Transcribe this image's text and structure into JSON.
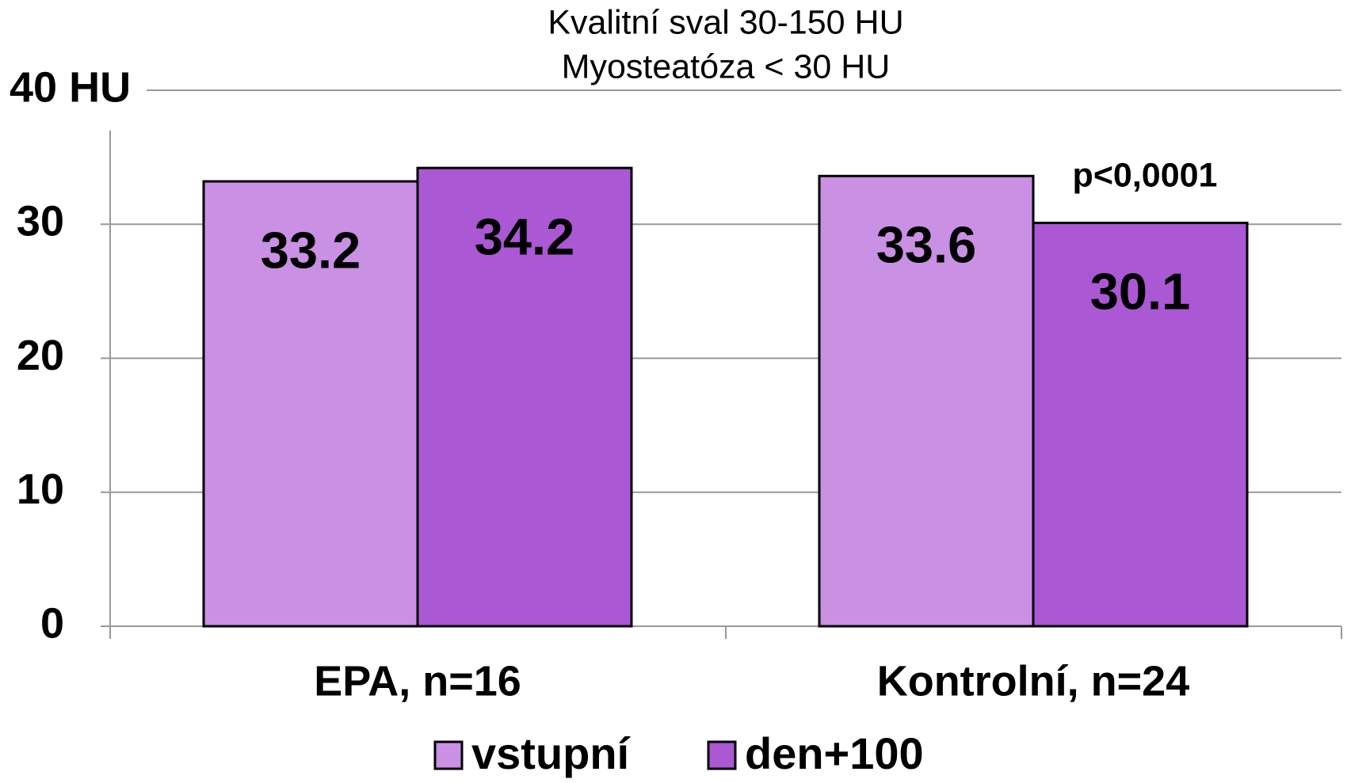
{
  "chart_data": {
    "type": "bar",
    "subtitle": [
      "Kvalitní sval 30-150 HU",
      "Myosteatóza < 30 HU"
    ],
    "categories": [
      "EPA, n=16",
      "Kontrolní, n=24"
    ],
    "series": [
      {
        "name": "vstupní",
        "color": "#c990e3",
        "values": [
          33.2,
          33.6
        ]
      },
      {
        "name": "den+100",
        "color": "#aa58d3",
        "values": [
          34.2,
          30.1
        ]
      }
    ],
    "annotation": "p<0,0001",
    "ylim": [
      0,
      40
    ],
    "yticks": [
      0,
      10,
      20,
      30,
      {
        "value": 40,
        "label": "40 HU"
      }
    ],
    "grid": true
  }
}
